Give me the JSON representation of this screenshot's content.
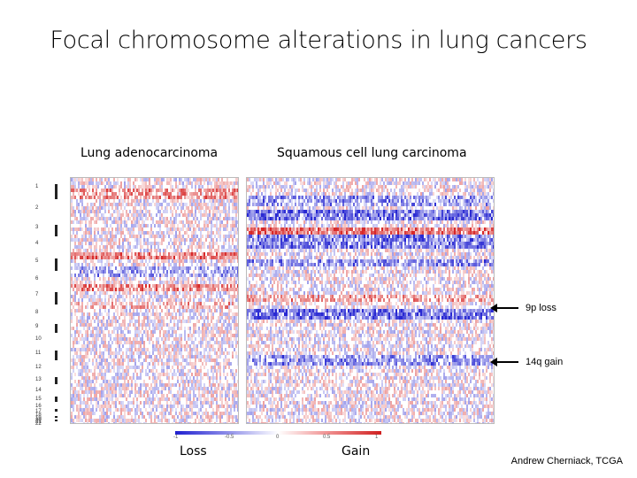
{
  "title": "Focal chromosome alterations in lung cancers",
  "panels": {
    "adeno_label": "Lung adenocarcinoma",
    "squam_label": "Squamous cell lung carcinoma"
  },
  "annotations": {
    "loss_9p": "9p loss",
    "gain_14q": "14q gain"
  },
  "colorbar": {
    "loss_label": "Loss",
    "gain_label": "Gain",
    "colors": {
      "loss": "#1f1fd0",
      "neutral": "#ffffff",
      "gain": "#d01f1f"
    }
  },
  "credit": "Andrew Cherniack, TCGA"
}
